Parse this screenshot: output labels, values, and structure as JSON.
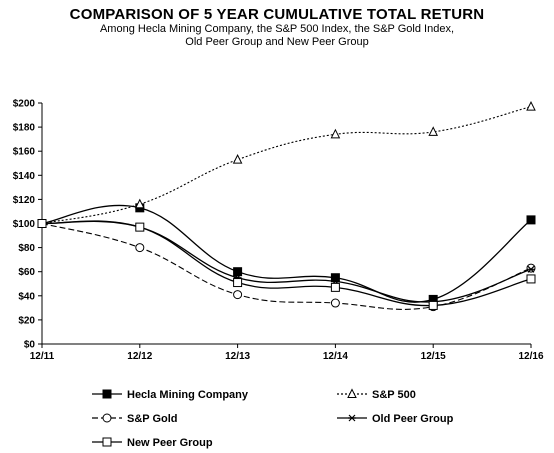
{
  "chart_data": {
    "type": "line",
    "title": "COMPARISON OF 5 YEAR CUMULATIVE TOTAL RETURN",
    "subtitle_lines": [
      "Among Hecla Mining Company, the S&P 500 Index, the S&P Gold Index,",
      "Old Peer Group and New Peer Group"
    ],
    "categories": [
      "12/11",
      "12/12",
      "12/13",
      "12/14",
      "12/15",
      "12/16"
    ],
    "y_tick_labels": [
      "$0",
      "$20",
      "$40",
      "$60",
      "$80",
      "$100",
      "$120",
      "$140",
      "$160",
      "$180",
      "$200"
    ],
    "ylim": [
      0,
      200
    ],
    "grid": false,
    "legend_placement": "bottom",
    "series": [
      {
        "name": "Hecla Mining Company",
        "values": [
          100,
          113,
          60,
          55,
          37,
          103
        ],
        "marker": "filled-square",
        "dash": "solid",
        "color": "#000000"
      },
      {
        "name": "S&P 500",
        "values": [
          100,
          116,
          153,
          174,
          176,
          197
        ],
        "marker": "open-triangle",
        "dash": "dotted",
        "color": "#000000"
      },
      {
        "name": "S&P Gold",
        "values": [
          100,
          80,
          41,
          34,
          31,
          63
        ],
        "marker": "open-circle",
        "dash": "dashed",
        "color": "#000000"
      },
      {
        "name": "Old Peer Group",
        "values": [
          100,
          97,
          55,
          52,
          35,
          62
        ],
        "marker": "asterisk",
        "dash": "solid",
        "color": "#000000"
      },
      {
        "name": "New Peer Group",
        "values": [
          100,
          97,
          51,
          47,
          32,
          54
        ],
        "marker": "open-square",
        "dash": "solid",
        "color": "#000000"
      }
    ]
  }
}
